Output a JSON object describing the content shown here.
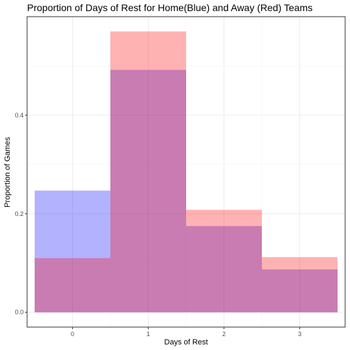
{
  "chart_data": {
    "type": "bar",
    "title": "Proportion of Days of Rest for Home(Blue) and Away (Red) Teams",
    "xlabel": "Days of Rest",
    "ylabel": "Proportion of Games",
    "categories": [
      "0",
      "1",
      "2",
      "3"
    ],
    "x": [
      0,
      1,
      2,
      3
    ],
    "xlim": [
      -0.6,
      3.6
    ],
    "ylim": [
      -0.03,
      0.6
    ],
    "yticks": [
      0.0,
      0.2,
      0.4
    ],
    "ytick_labels": [
      "0.0",
      "0.2",
      "0.4"
    ],
    "bar_width": 1,
    "grid": true,
    "legend": "none",
    "series": [
      {
        "values": [
          0.247,
          0.492,
          0.175,
          0.087
        ],
        "color": "#0000ff",
        "opacity": 0.3
      },
      {
        "values": [
          0.11,
          0.57,
          0.208,
          0.112
        ],
        "color": "#ff0000",
        "opacity": 0.3
      }
    ],
    "colors": {
      "panel_border": "#333333",
      "grid_major": "#ebebeb",
      "grid_minor": "#f5f5f5",
      "tick": "#333333"
    }
  }
}
